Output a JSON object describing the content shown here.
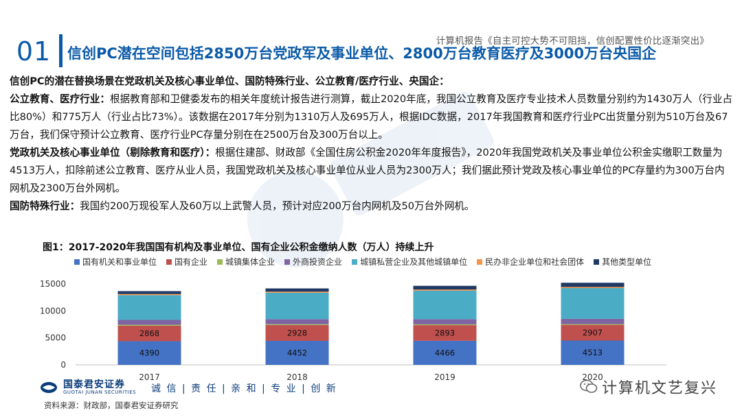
{
  "header": {
    "report_note": "计算机报告《自主可控大势不可阻挡，信创配置性价比逐渐突出》",
    "section_number": "01",
    "title": "信创PC潜在空间包括2850万台党政军及事业单位、2800万台教育医疗及3000万台央国企"
  },
  "body": {
    "intro": "信创PC的潜在替换场景在党政机关及核心事业单位、国防特殊行业、公立教育/医疗行业、央国企：",
    "p1_label": "公立教育、医疗行业：",
    "p1_text": "根据教育部和卫健委发布的相关年度统计报告进行测算，截止2020年底，我国公立教育及医疗专业技术人员数量分别约为1430万人（行业占比80%）和775万人（行业占比73%）。该数据在2017年分别为1310万人及695万人，根据IDC数据，2017年我国教育和医疗行业PC出货量分别为510万台及67万台，我们保守预计公立教育、医疗行业PC存量分别在在2500万台及300万台以上。",
    "p2_label": "党政机关及核心事业单位（剔除教育和医疗）：",
    "p2_text": "根据住建部、财政部《全国住房公积金2020年年度报告》，2020年我国党政机关及事业单位公积金实缴职工数量为4513万人，扣除前述公立教育、医疗从业人员，我国党政机关及核心事业单位从业人员为2300万人；我们据此预计党政及核心事业单位的PC存量约为300万台内网机及2300万台外网机。",
    "p3_label": "国防特殊行业：",
    "p3_text": "我国约200万现役军人及60万以上武警人员，预计对应200万台内网机及50万台外网机。"
  },
  "chart_data": {
    "type": "bar",
    "stacked": true,
    "title": "图1：2017-2020年我国国有机构及事业单位、国有企业公积金缴纳人数（万人）持续上升",
    "categories": [
      "2017",
      "2018",
      "2019",
      "2020"
    ],
    "ylim": [
      0,
      15000
    ],
    "yticks": [
      0,
      5000,
      10000,
      15000
    ],
    "grid": false,
    "legend_position": "top",
    "series": [
      {
        "name": "国有机关和事业单位",
        "color": "#4472c4",
        "values": [
          4390,
          4452,
          4466,
          4513
        ],
        "labeled": true
      },
      {
        "name": "国有企业",
        "color": "#c0504d",
        "values": [
          2868,
          2928,
          2893,
          2907
        ],
        "labeled": true
      },
      {
        "name": "城镇集体企业",
        "color": "#9bbb59",
        "values": [
          170,
          160,
          150,
          140
        ],
        "labeled": false
      },
      {
        "name": "外商投资企业",
        "color": "#8064a2",
        "values": [
          900,
          930,
          960,
          980
        ],
        "labeled": false
      },
      {
        "name": "城镇私营企业及其他城镇单位",
        "color": "#4bacc6",
        "values": [
          4600,
          4900,
          5300,
          5700
        ],
        "labeled": false
      },
      {
        "name": "民办非企业单位和社会团体",
        "color": "#f79646",
        "values": [
          200,
          200,
          200,
          200
        ],
        "labeled": false
      },
      {
        "name": "其他类型单位",
        "color": "#1f3864",
        "values": [
          540,
          600,
          680,
          780
        ],
        "labeled": false
      }
    ]
  },
  "footer": {
    "logo_name": "国泰君安证券",
    "logo_en": "GUOTAI JUNAN SECURITIES",
    "slogan": "诚 信 | 责 任 | 亲 和 | 专 业 | 创 新",
    "source": "资料来源：财政部，国泰君安证券研究",
    "wechat_account": "计算机文艺复兴"
  },
  "colors": {
    "brand_blue": "#0b5aa8"
  }
}
